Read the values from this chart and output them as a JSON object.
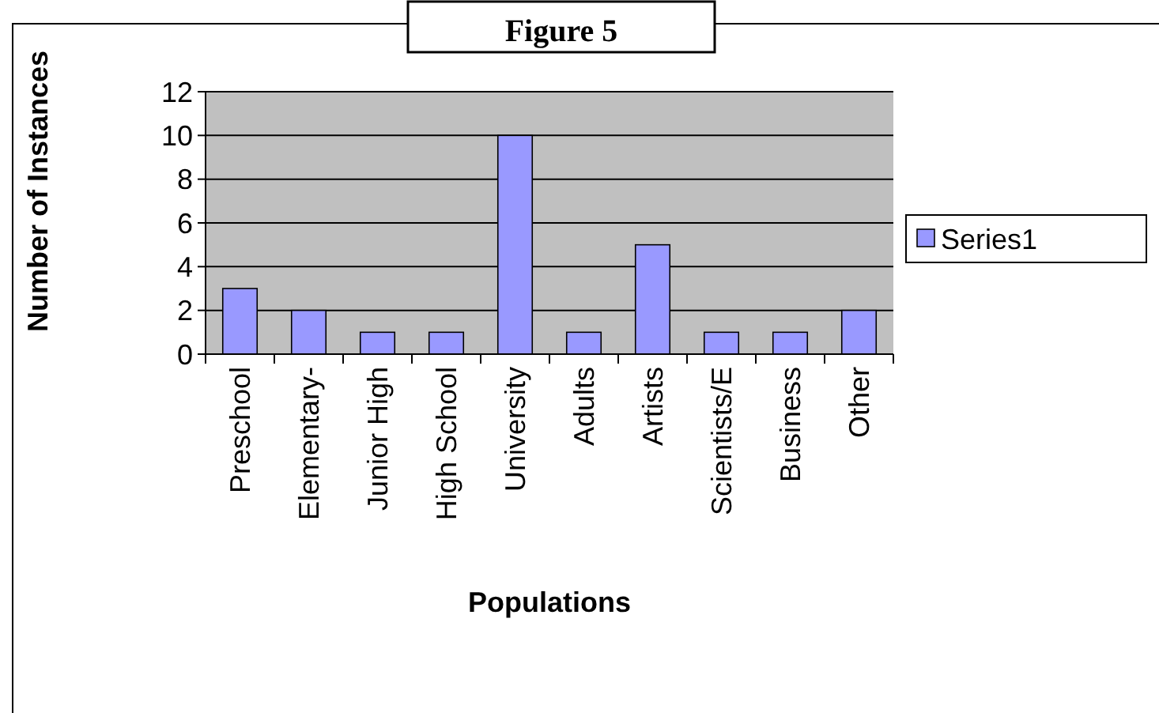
{
  "chart_data": {
    "type": "bar",
    "title": "Figure 5",
    "xlabel": "Populations",
    "ylabel": "Number of Instances",
    "categories": [
      "Preschool",
      "Elementary-",
      "Junior High",
      "High School",
      "University",
      "Adults",
      "Artists",
      "Scientists/E",
      "Business",
      "Other"
    ],
    "series": [
      {
        "name": "Series1",
        "color": "#9999ff",
        "values": [
          3,
          2,
          1,
          1,
          10,
          1,
          5,
          1,
          1,
          2
        ]
      }
    ],
    "ylim": [
      0,
      12
    ],
    "yticks": [
      0,
      2,
      4,
      6,
      8,
      10,
      12
    ],
    "grid": "y",
    "legend": "right"
  }
}
